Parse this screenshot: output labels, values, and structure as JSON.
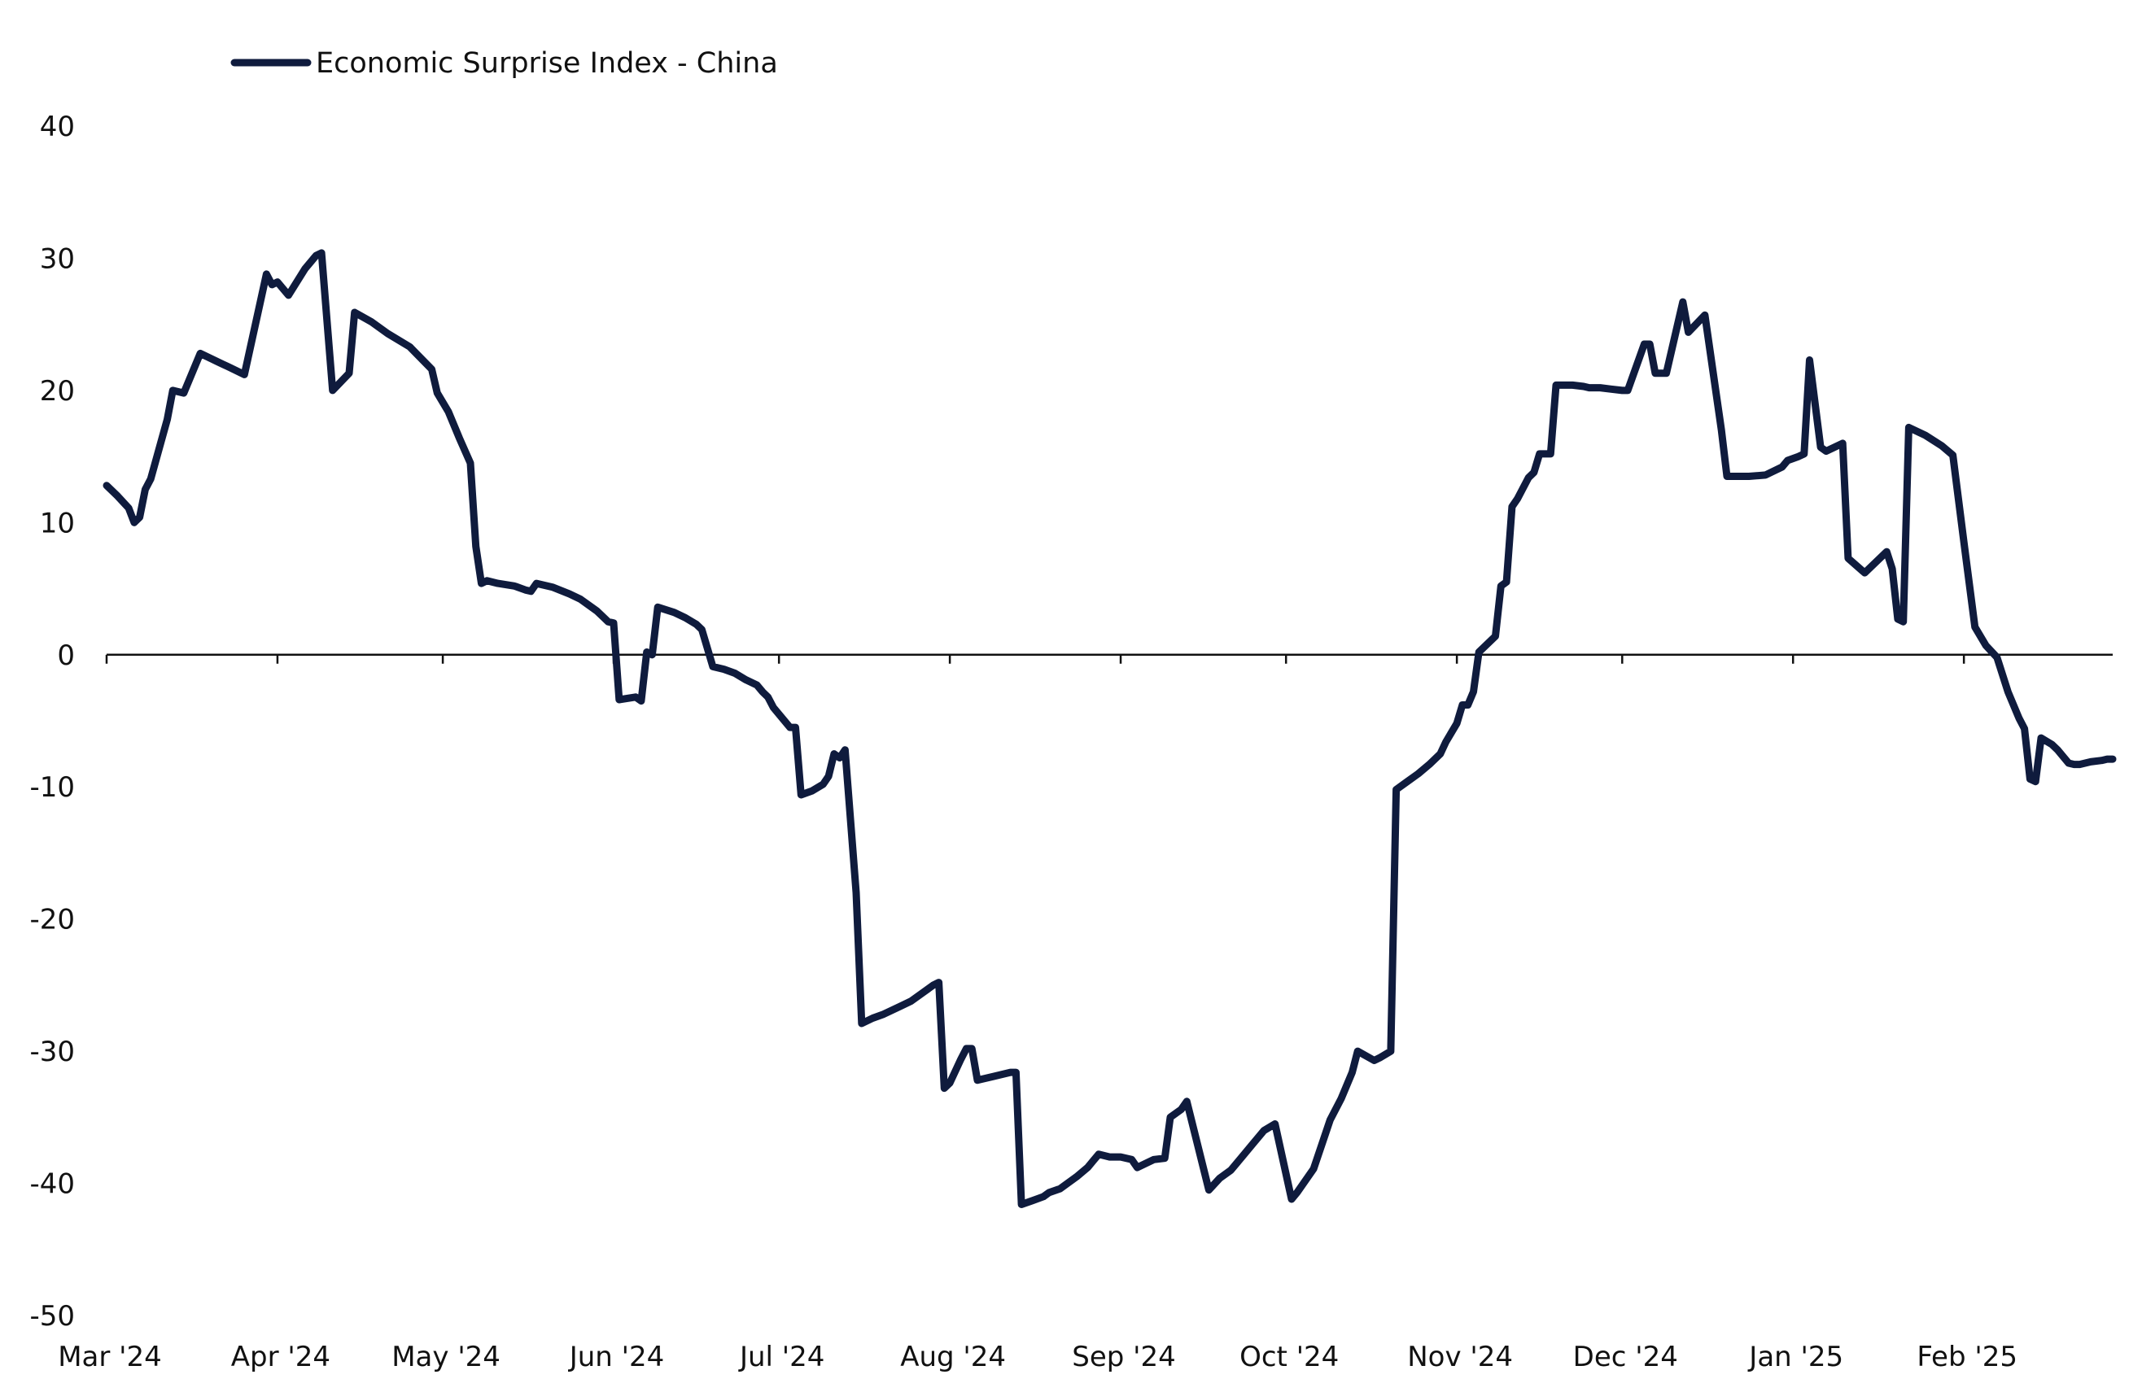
{
  "chart_data": {
    "type": "line",
    "title": "",
    "xlabel": "",
    "ylabel": "",
    "legend": {
      "placement": "top-left",
      "entries": [
        "Economic Surprise Index - China"
      ]
    },
    "grid": false,
    "ylim": [
      -50,
      40
    ],
    "y_ticks": [
      40,
      30,
      20,
      10,
      0,
      -10,
      -20,
      -30,
      -40,
      -50
    ],
    "y_tick_labels": [
      "40",
      "30",
      "20",
      "10",
      "0",
      "-10",
      "-20",
      "-30",
      "-40",
      "-50"
    ],
    "x_tick_labels": [
      "Mar '24",
      "Apr '24",
      "May '24",
      "Jun '24",
      "Jul '24",
      "Aug '24",
      "Sep '24",
      "Oct '24",
      "Nov '24",
      "Dec '24",
      "Jan '25",
      "Feb '25"
    ],
    "x_ticks": [
      "2024-03-01",
      "2024-04-01",
      "2024-05-01",
      "2024-06-01",
      "2024-07-01",
      "2024-08-01",
      "2024-09-01",
      "2024-10-01",
      "2024-11-01",
      "2024-12-01",
      "2025-01-01",
      "2025-02-01"
    ],
    "xlim": [
      "2024-03-01",
      "2025-02-28"
    ],
    "colors": {
      "line": "#0f1b3d",
      "axis": "#111111"
    },
    "series": [
      {
        "name": "Economic Surprise Index - China",
        "points": [
          [
            "2024-03-01",
            12.8
          ],
          [
            "2024-03-03",
            12.0
          ],
          [
            "2024-03-05",
            11.1
          ],
          [
            "2024-03-06",
            10.0
          ],
          [
            "2024-03-07",
            10.4
          ],
          [
            "2024-03-08",
            12.5
          ],
          [
            "2024-03-09",
            13.3
          ],
          [
            "2024-03-12",
            17.8
          ],
          [
            "2024-03-13",
            20.0
          ],
          [
            "2024-03-14",
            19.9
          ],
          [
            "2024-03-15",
            19.8
          ],
          [
            "2024-03-18",
            22.8
          ],
          [
            "2024-03-19",
            22.6
          ],
          [
            "2024-03-20",
            22.4
          ],
          [
            "2024-03-21",
            22.2
          ],
          [
            "2024-03-22",
            22.0
          ],
          [
            "2024-03-23",
            21.8
          ],
          [
            "2024-03-26",
            21.2
          ],
          [
            "2024-03-30",
            28.8
          ],
          [
            "2024-03-31",
            28.0
          ],
          [
            "2024-04-01",
            28.2
          ],
          [
            "2024-04-03",
            27.2
          ],
          [
            "2024-04-06",
            29.2
          ],
          [
            "2024-04-08",
            30.2
          ],
          [
            "2024-04-09",
            30.4
          ],
          [
            "2024-04-11",
            20.0
          ],
          [
            "2024-04-14",
            21.3
          ],
          [
            "2024-04-15",
            25.9
          ],
          [
            "2024-04-18",
            25.2
          ],
          [
            "2024-04-21",
            24.3
          ],
          [
            "2024-04-25",
            23.3
          ],
          [
            "2024-04-29",
            21.6
          ],
          [
            "2024-04-30",
            19.8
          ],
          [
            "2024-05-02",
            18.4
          ],
          [
            "2024-05-04",
            16.4
          ],
          [
            "2024-05-06",
            14.5
          ],
          [
            "2024-05-07",
            8.2
          ],
          [
            "2024-05-08",
            5.4
          ],
          [
            "2024-05-09",
            5.6
          ],
          [
            "2024-05-11",
            5.4
          ],
          [
            "2024-05-14",
            5.2
          ],
          [
            "2024-05-16",
            4.9
          ],
          [
            "2024-05-17",
            4.8
          ],
          [
            "2024-05-18",
            5.4
          ],
          [
            "2024-05-21",
            5.1
          ],
          [
            "2024-05-24",
            4.6
          ],
          [
            "2024-05-26",
            4.2
          ],
          [
            "2024-05-29",
            3.3
          ],
          [
            "2024-05-31",
            2.5
          ],
          [
            "2024-06-01",
            2.4
          ],
          [
            "2024-06-02",
            -3.4
          ],
          [
            "2024-06-05",
            -3.2
          ],
          [
            "2024-06-06",
            -3.5
          ],
          [
            "2024-06-07",
            0.2
          ],
          [
            "2024-06-08",
            0.0
          ],
          [
            "2024-06-09",
            3.6
          ],
          [
            "2024-06-12",
            3.2
          ],
          [
            "2024-06-14",
            2.8
          ],
          [
            "2024-06-16",
            2.3
          ],
          [
            "2024-06-17",
            1.9
          ],
          [
            "2024-06-19",
            -0.9
          ],
          [
            "2024-06-21",
            -1.1
          ],
          [
            "2024-06-23",
            -1.4
          ],
          [
            "2024-06-25",
            -1.9
          ],
          [
            "2024-06-27",
            -2.3
          ],
          [
            "2024-06-28",
            -2.8
          ],
          [
            "2024-06-29",
            -3.2
          ],
          [
            "2024-06-30",
            -4.0
          ],
          [
            "2024-07-03",
            -5.5
          ],
          [
            "2024-07-04",
            -5.5
          ],
          [
            "2024-07-05",
            -10.6
          ],
          [
            "2024-07-07",
            -10.3
          ],
          [
            "2024-07-09",
            -9.8
          ],
          [
            "2024-07-10",
            -9.2
          ],
          [
            "2024-07-11",
            -7.5
          ],
          [
            "2024-07-12",
            -7.8
          ],
          [
            "2024-07-13",
            -7.2
          ],
          [
            "2024-07-15",
            -18.0
          ],
          [
            "2024-07-16",
            -27.9
          ],
          [
            "2024-07-18",
            -27.5
          ],
          [
            "2024-07-20",
            -27.2
          ],
          [
            "2024-07-23",
            -26.6
          ],
          [
            "2024-07-25",
            -26.2
          ],
          [
            "2024-07-27",
            -25.6
          ],
          [
            "2024-07-29",
            -25.0
          ],
          [
            "2024-07-30",
            -24.8
          ],
          [
            "2024-07-31",
            -32.8
          ],
          [
            "2024-08-01",
            -32.4
          ],
          [
            "2024-08-03",
            -30.6
          ],
          [
            "2024-08-04",
            -29.8
          ],
          [
            "2024-08-05",
            -29.8
          ],
          [
            "2024-08-06",
            -32.2
          ],
          [
            "2024-08-09",
            -31.9
          ],
          [
            "2024-08-12",
            -31.6
          ],
          [
            "2024-08-13",
            -31.6
          ],
          [
            "2024-08-14",
            -41.6
          ],
          [
            "2024-08-16",
            -41.3
          ],
          [
            "2024-08-18",
            -41.0
          ],
          [
            "2024-08-19",
            -40.7
          ],
          [
            "2024-08-21",
            -40.4
          ],
          [
            "2024-08-24",
            -39.5
          ],
          [
            "2024-08-26",
            -38.8
          ],
          [
            "2024-08-27",
            -38.3
          ],
          [
            "2024-08-28",
            -37.8
          ],
          [
            "2024-08-30",
            -38.0
          ],
          [
            "2024-09-01",
            -38.0
          ],
          [
            "2024-09-03",
            -38.2
          ],
          [
            "2024-09-04",
            -38.8
          ],
          [
            "2024-09-06",
            -38.4
          ],
          [
            "2024-09-07",
            -38.2
          ],
          [
            "2024-09-09",
            -38.1
          ],
          [
            "2024-09-10",
            -35.0
          ],
          [
            "2024-09-12",
            -34.4
          ],
          [
            "2024-09-13",
            -33.8
          ],
          [
            "2024-09-17",
            -40.5
          ],
          [
            "2024-09-19",
            -39.6
          ],
          [
            "2024-09-21",
            -39.0
          ],
          [
            "2024-09-23",
            -38.0
          ],
          [
            "2024-09-25",
            -37.0
          ],
          [
            "2024-09-27",
            -36.0
          ],
          [
            "2024-09-29",
            -35.5
          ],
          [
            "2024-10-02",
            -41.2
          ],
          [
            "2024-10-03",
            -40.7
          ],
          [
            "2024-10-06",
            -38.9
          ],
          [
            "2024-10-09",
            -35.2
          ],
          [
            "2024-10-11",
            -33.6
          ],
          [
            "2024-10-13",
            -31.6
          ],
          [
            "2024-10-14",
            -30.0
          ],
          [
            "2024-10-17",
            -30.7
          ],
          [
            "2024-10-18",
            -30.5
          ],
          [
            "2024-10-20",
            -30.0
          ],
          [
            "2024-10-21",
            -10.2
          ],
          [
            "2024-10-23",
            -9.6
          ],
          [
            "2024-10-25",
            -9.0
          ],
          [
            "2024-10-27",
            -8.3
          ],
          [
            "2024-10-29",
            -7.5
          ],
          [
            "2024-10-30",
            -6.6
          ],
          [
            "2024-11-01",
            -5.2
          ],
          [
            "2024-11-02",
            -3.8
          ],
          [
            "2024-11-03",
            -3.8
          ],
          [
            "2024-11-04",
            -2.8
          ],
          [
            "2024-11-05",
            0.2
          ],
          [
            "2024-11-08",
            1.4
          ],
          [
            "2024-11-09",
            5.2
          ],
          [
            "2024-11-10",
            5.5
          ],
          [
            "2024-11-11",
            11.2
          ],
          [
            "2024-11-12",
            11.8
          ],
          [
            "2024-11-14",
            13.4
          ],
          [
            "2024-11-15",
            13.8
          ],
          [
            "2024-11-16",
            15.2
          ],
          [
            "2024-11-18",
            15.2
          ],
          [
            "2024-11-19",
            20.4
          ],
          [
            "2024-11-22",
            20.4
          ],
          [
            "2024-11-24",
            20.3
          ],
          [
            "2024-11-25",
            20.2
          ],
          [
            "2024-11-27",
            20.2
          ],
          [
            "2024-11-29",
            20.1
          ],
          [
            "2024-12-01",
            20.0
          ],
          [
            "2024-12-02",
            20.0
          ],
          [
            "2024-12-05",
            23.5
          ],
          [
            "2024-12-06",
            23.5
          ],
          [
            "2024-12-07",
            21.3
          ],
          [
            "2024-12-09",
            21.3
          ],
          [
            "2024-12-12",
            26.7
          ],
          [
            "2024-12-13",
            24.4
          ],
          [
            "2024-12-16",
            25.7
          ],
          [
            "2024-12-19",
            17.0
          ],
          [
            "2024-12-20",
            13.5
          ],
          [
            "2024-12-24",
            13.5
          ],
          [
            "2024-12-27",
            13.6
          ],
          [
            "2024-12-28",
            13.8
          ],
          [
            "2024-12-30",
            14.2
          ],
          [
            "2024-12-31",
            14.7
          ],
          [
            "2025-01-02",
            15.0
          ],
          [
            "2025-01-03",
            15.2
          ],
          [
            "2025-01-04",
            22.3
          ],
          [
            "2025-01-06",
            15.7
          ],
          [
            "2025-01-07",
            15.4
          ],
          [
            "2025-01-10",
            16.0
          ],
          [
            "2025-01-11",
            7.3
          ],
          [
            "2025-01-14",
            6.2
          ],
          [
            "2025-01-18",
            7.8
          ],
          [
            "2025-01-19",
            6.5
          ],
          [
            "2025-01-20",
            2.7
          ],
          [
            "2025-01-21",
            2.5
          ],
          [
            "2025-01-22",
            17.2
          ],
          [
            "2025-01-25",
            16.6
          ],
          [
            "2025-01-28",
            15.8
          ],
          [
            "2025-01-30",
            15.1
          ],
          [
            "2025-02-01",
            8.5
          ],
          [
            "2025-02-03",
            2.1
          ],
          [
            "2025-02-05",
            0.7
          ],
          [
            "2025-02-07",
            -0.2
          ],
          [
            "2025-02-09",
            -2.8
          ],
          [
            "2025-02-11",
            -4.8
          ],
          [
            "2025-02-12",
            -5.6
          ],
          [
            "2025-02-13",
            -9.4
          ],
          [
            "2025-02-14",
            -9.6
          ],
          [
            "2025-02-15",
            -6.3
          ],
          [
            "2025-02-17",
            -6.8
          ],
          [
            "2025-02-18",
            -7.2
          ],
          [
            "2025-02-20",
            -8.2
          ],
          [
            "2025-02-21",
            -8.3
          ],
          [
            "2025-02-22",
            -8.3
          ],
          [
            "2025-02-24",
            -8.1
          ],
          [
            "2025-02-26",
            -8.0
          ],
          [
            "2025-02-27",
            -7.9
          ],
          [
            "2025-02-28",
            -7.9
          ]
        ]
      }
    ]
  }
}
